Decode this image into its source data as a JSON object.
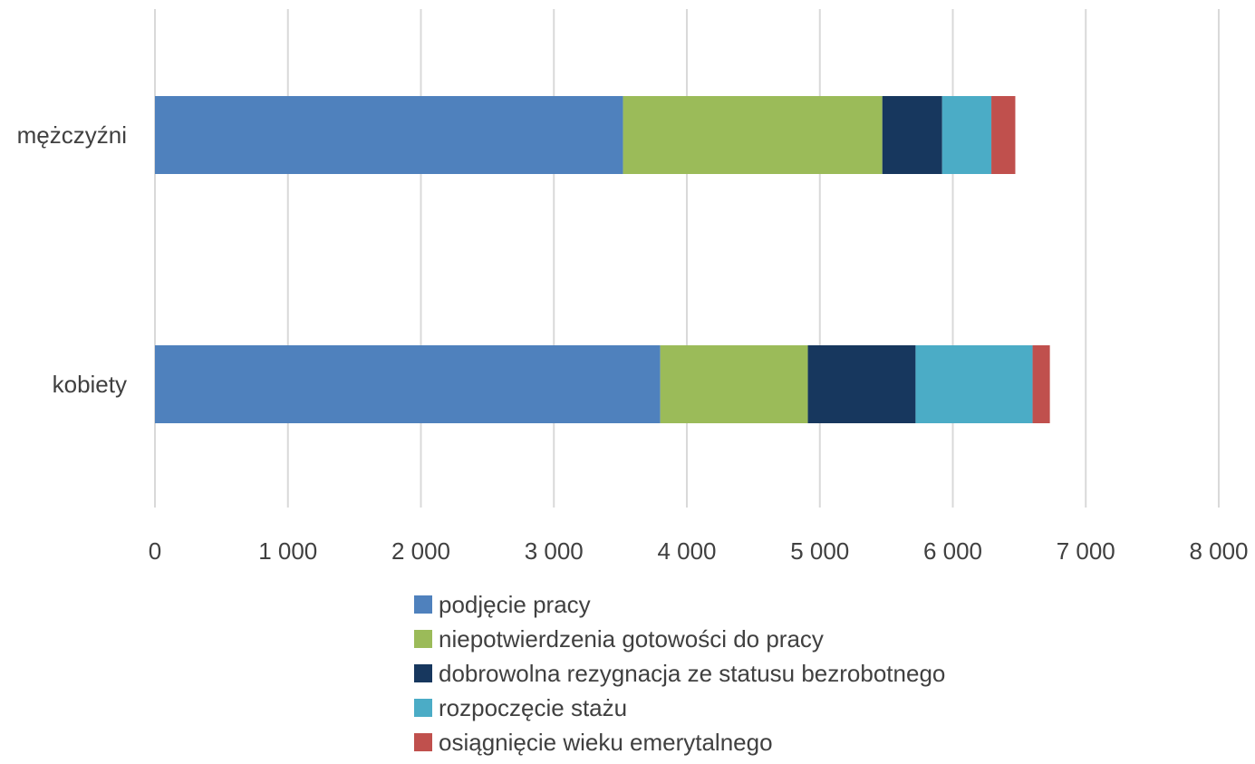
{
  "chart_data": {
    "type": "bar",
    "orientation": "horizontal",
    "stacked": true,
    "categories": [
      "mężczyźni",
      "kobiety"
    ],
    "series": [
      {
        "name": "podjęcie pracy",
        "color": "#4F81BD",
        "values": [
          3520,
          3800
        ]
      },
      {
        "name": "niepotwierdzenia gotowości do pracy",
        "color": "#9BBB59",
        "values": [
          1950,
          1110
        ]
      },
      {
        "name": "dobrowolna rezygnacja ze statusu bezrobotnego",
        "color": "#17375E",
        "values": [
          450,
          810
        ]
      },
      {
        "name": "rozpoczęcie stażu",
        "color": "#4BACC6",
        "values": [
          370,
          880
        ]
      },
      {
        "name": "osiągnięcie wieku emerytalnego",
        "color": "#C0504D",
        "values": [
          180,
          130
        ]
      }
    ],
    "xlim": [
      0,
      8000
    ],
    "xticks": [
      0,
      1000,
      2000,
      3000,
      4000,
      5000,
      6000,
      7000,
      8000
    ],
    "xtick_labels": [
      "0",
      "1 000",
      "2 000",
      "3 000",
      "4 000",
      "5 000",
      "6 000",
      "7 000",
      "8 000"
    ],
    "grid": true,
    "legend_position": "bottom",
    "title": "",
    "xlabel": "",
    "ylabel": ""
  }
}
